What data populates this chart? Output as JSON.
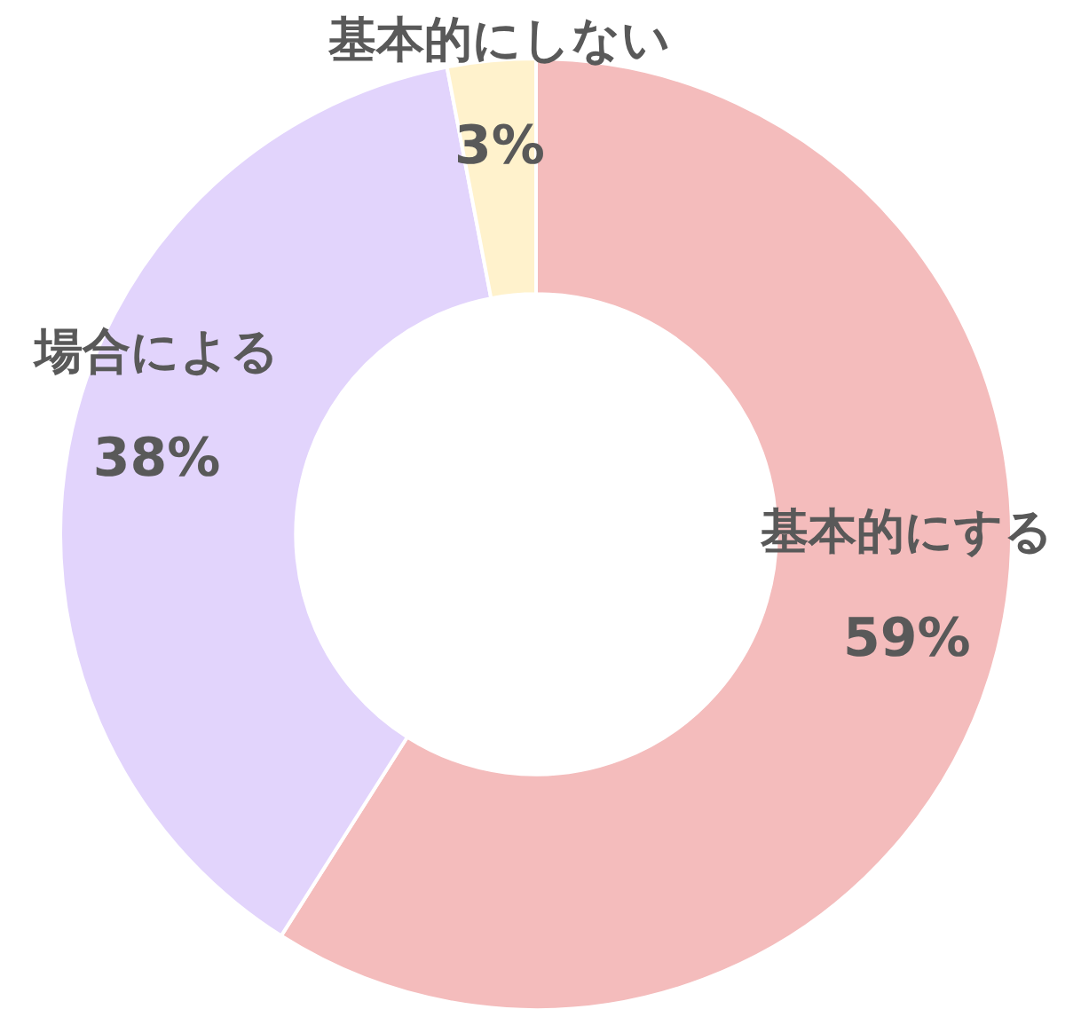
{
  "chart_data": {
    "type": "donut",
    "categories": [
      "基本的にする",
      "場合による",
      "基本的にしない"
    ],
    "values": [
      59,
      38,
      3
    ],
    "colors": [
      "#f4bcbc",
      "#e2d4fc",
      "#fff2cc"
    ],
    "value_labels": [
      "59%",
      "38%",
      "3%"
    ]
  }
}
